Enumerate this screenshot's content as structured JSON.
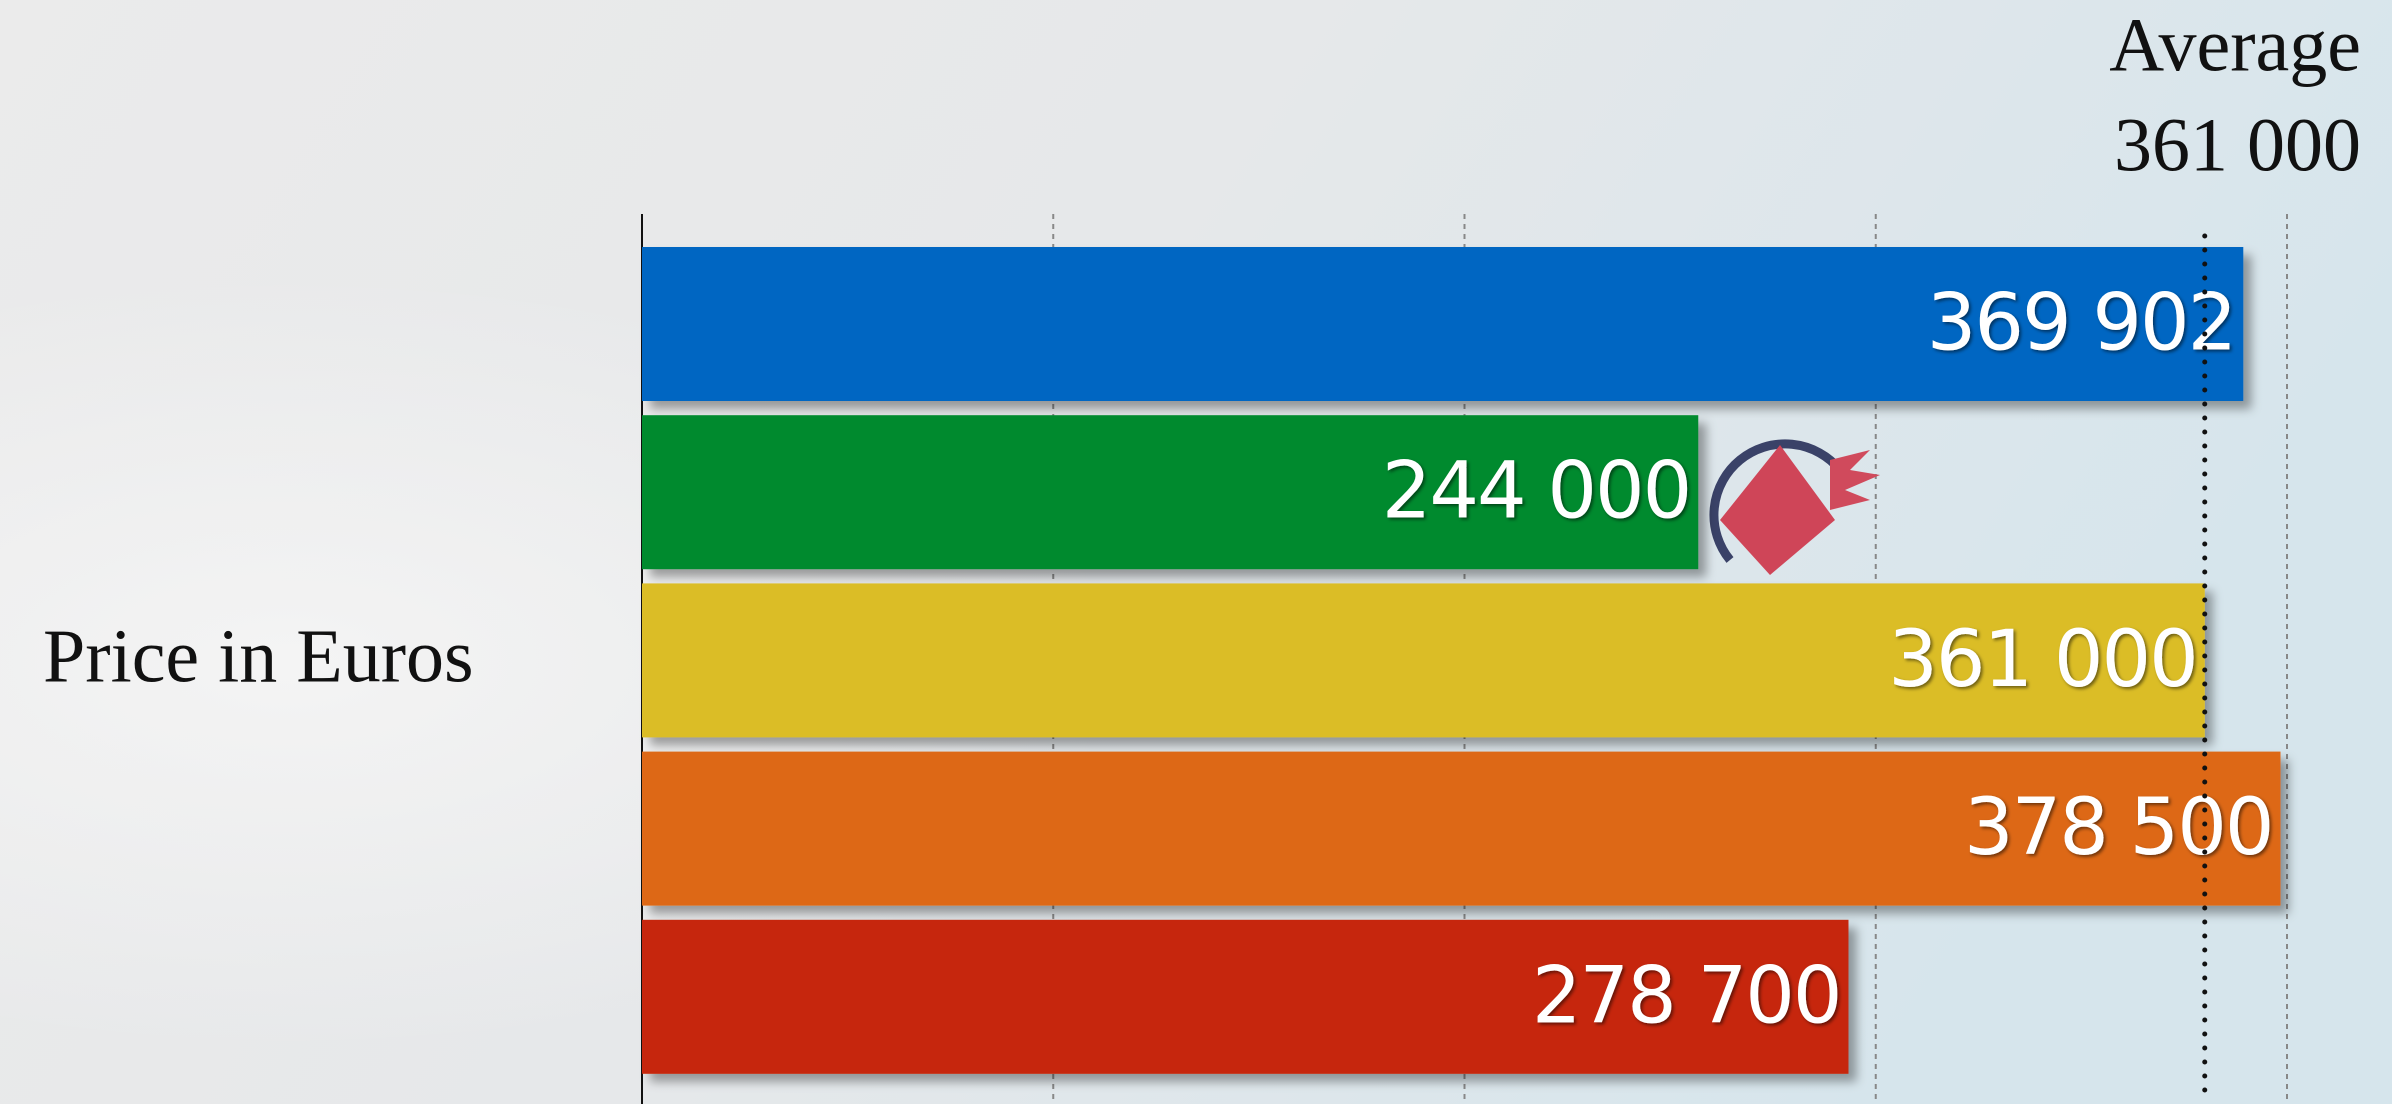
{
  "chart_data": {
    "type": "bar",
    "orientation": "horizontal",
    "y_label": "Price in Euros",
    "categories": [
      null,
      null,
      null,
      null,
      null
    ],
    "values": [
      369902,
      244000,
      361000,
      378500,
      278700
    ],
    "value_labels": [
      "369 902",
      "244 000",
      "361 000",
      "378 500",
      "278 700"
    ],
    "colors": [
      "#0566c2",
      "#008a2e",
      "#dbbd25",
      "#dd6812",
      "#c62508"
    ],
    "xlim": [
      0,
      380000
    ],
    "xticks": [
      95000,
      190000,
      285000,
      380000
    ],
    "tick_labels": false,
    "grid": true,
    "reference_line": {
      "title": "Average",
      "value": 361000,
      "label": "361 000"
    }
  }
}
